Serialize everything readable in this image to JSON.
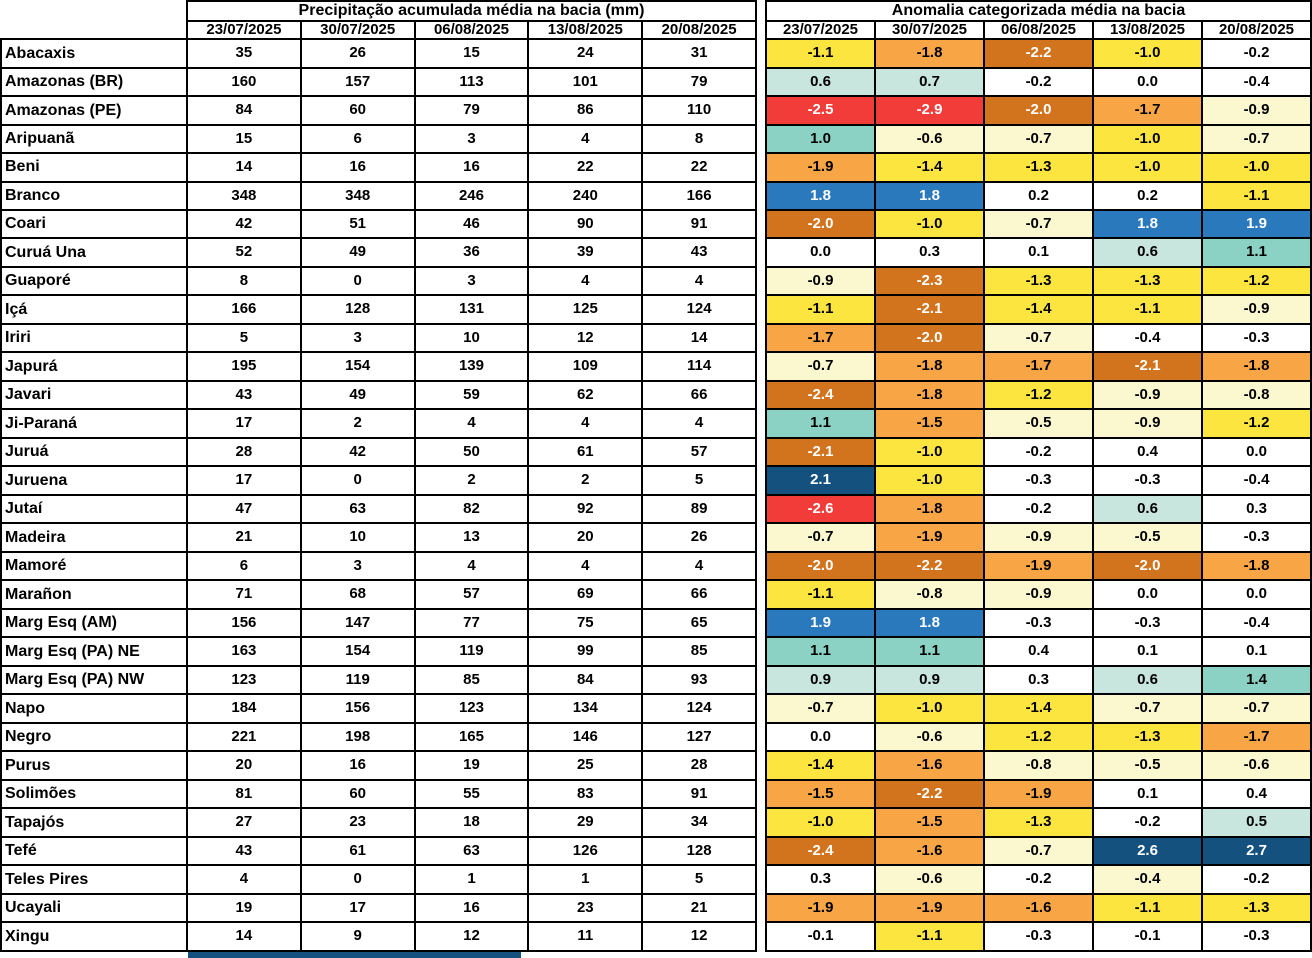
{
  "palette": {
    "white": "#FFFFFF",
    "cream": "#FBF8D0",
    "yellow": "#FCE53F",
    "orange": "#F8A645",
    "darkorange": "#D2741E",
    "red": "#F23C3A",
    "lightblue": "#C8E5DE",
    "teal": "#8BD2C5",
    "blue": "#2A79BC",
    "navy": "#14517F"
  },
  "dark_text_categories": [
    "darkorange",
    "red",
    "blue",
    "navy"
  ],
  "text_colors": {
    "dark_cell_text": "#FFFFFF",
    "light_cell_text": "#000000"
  },
  "bottom_bar": {
    "color": "#14517F"
  },
  "chart_data": {
    "type": "heatmap",
    "dates": [
      "23/07/2025",
      "30/07/2025",
      "06/08/2025",
      "13/08/2025",
      "20/08/2025"
    ],
    "basins": [
      "Abacaxis",
      "Amazonas (BR)",
      "Amazonas (PE)",
      "Aripuanã",
      "Beni",
      "Branco",
      "Coari",
      "Curuá Una",
      "Guaporé",
      "Içá",
      "Iriri",
      "Japurá",
      "Javari",
      "Ji-Paraná",
      "Juruá",
      "Juruena",
      "Jutaí",
      "Madeira",
      "Mamoré",
      "Marañon",
      "Marg Esq (AM)",
      "Marg Esq (PA) NE",
      "Marg Esq (PA) NW",
      "Napo",
      "Negro",
      "Purus",
      "Solimões",
      "Tapajós",
      "Tefé",
      "Teles Pires",
      "Ucayali",
      "Xingu"
    ],
    "left": {
      "title": "Precipitação acumulada média na bacia (mm)",
      "unit": "mm",
      "values": [
        [
          35,
          26,
          15,
          24,
          31
        ],
        [
          160,
          157,
          113,
          101,
          79
        ],
        [
          84,
          60,
          79,
          86,
          110
        ],
        [
          15,
          6,
          3,
          4,
          8
        ],
        [
          14,
          16,
          16,
          22,
          22
        ],
        [
          348,
          348,
          246,
          240,
          166
        ],
        [
          42,
          51,
          46,
          90,
          91
        ],
        [
          52,
          49,
          36,
          39,
          43
        ],
        [
          8,
          0,
          3,
          4,
          4
        ],
        [
          166,
          128,
          131,
          125,
          124
        ],
        [
          5,
          3,
          10,
          12,
          14
        ],
        [
          195,
          154,
          139,
          109,
          114
        ],
        [
          43,
          49,
          59,
          62,
          66
        ],
        [
          17,
          2,
          4,
          4,
          4
        ],
        [
          28,
          42,
          50,
          61,
          57
        ],
        [
          17,
          0,
          2,
          2,
          5
        ],
        [
          47,
          63,
          82,
          92,
          89
        ],
        [
          21,
          10,
          13,
          20,
          26
        ],
        [
          6,
          3,
          4,
          4,
          4
        ],
        [
          71,
          68,
          57,
          69,
          66
        ],
        [
          156,
          147,
          77,
          75,
          65
        ],
        [
          163,
          154,
          119,
          99,
          85
        ],
        [
          123,
          119,
          85,
          84,
          93
        ],
        [
          184,
          156,
          123,
          134,
          124
        ],
        [
          221,
          198,
          165,
          146,
          127
        ],
        [
          20,
          16,
          19,
          25,
          28
        ],
        [
          81,
          60,
          55,
          83,
          91
        ],
        [
          27,
          23,
          18,
          29,
          34
        ],
        [
          43,
          61,
          63,
          126,
          128
        ],
        [
          4,
          0,
          1,
          1,
          5
        ],
        [
          19,
          17,
          16,
          23,
          21
        ],
        [
          14,
          9,
          12,
          11,
          12
        ]
      ]
    },
    "right": {
      "title": "Anomalia categorizada média na bacia",
      "values": [
        [
          -1.1,
          -1.8,
          -2.2,
          -1.0,
          -0.2
        ],
        [
          0.6,
          0.7,
          -0.2,
          0.0,
          -0.4
        ],
        [
          -2.5,
          -2.9,
          -2.0,
          -1.7,
          -0.9
        ],
        [
          1.0,
          -0.6,
          -0.7,
          -1.0,
          -0.7
        ],
        [
          -1.9,
          -1.4,
          -1.3,
          -1.0,
          -1.0
        ],
        [
          1.8,
          1.8,
          0.2,
          0.2,
          -1.1
        ],
        [
          -2.0,
          -1.0,
          -0.7,
          1.8,
          1.9
        ],
        [
          0.0,
          0.3,
          0.1,
          0.6,
          1.1
        ],
        [
          -0.9,
          -2.3,
          -1.3,
          -1.3,
          -1.2
        ],
        [
          -1.1,
          -2.1,
          -1.4,
          -1.1,
          -0.9
        ],
        [
          -1.7,
          -2.0,
          -0.7,
          -0.4,
          -0.3
        ],
        [
          -0.7,
          -1.8,
          -1.7,
          -2.1,
          -1.8
        ],
        [
          -2.4,
          -1.8,
          -1.2,
          -0.9,
          -0.8
        ],
        [
          1.1,
          -1.5,
          -0.5,
          -0.9,
          -1.2
        ],
        [
          -2.1,
          -1.0,
          -0.2,
          0.4,
          0.0
        ],
        [
          2.1,
          -1.0,
          -0.3,
          -0.3,
          -0.4
        ],
        [
          -2.6,
          -1.8,
          -0.2,
          0.6,
          0.3
        ],
        [
          -0.7,
          -1.9,
          -0.9,
          -0.5,
          -0.3
        ],
        [
          -2.0,
          -2.2,
          -1.9,
          -2.0,
          -1.8
        ],
        [
          -1.1,
          -0.8,
          -0.9,
          0.0,
          0.0
        ],
        [
          1.9,
          1.8,
          -0.3,
          -0.3,
          -0.4
        ],
        [
          1.1,
          1.1,
          0.4,
          0.1,
          0.1
        ],
        [
          0.9,
          0.9,
          0.3,
          0.6,
          1.4
        ],
        [
          -0.7,
          -1.0,
          -1.4,
          -0.7,
          -0.7
        ],
        [
          0.0,
          -0.6,
          -1.2,
          -1.3,
          -1.7
        ],
        [
          -1.4,
          -1.6,
          -0.8,
          -0.5,
          -0.6
        ],
        [
          -1.5,
          -2.2,
          -1.9,
          0.1,
          0.4
        ],
        [
          -1.0,
          -1.5,
          -1.3,
          -0.2,
          0.5
        ],
        [
          -2.4,
          -1.6,
          -0.7,
          2.6,
          2.7
        ],
        [
          0.3,
          -0.6,
          -0.2,
          -0.4,
          -0.2
        ],
        [
          -1.9,
          -1.9,
          -1.6,
          -1.1,
          -1.3
        ],
        [
          -0.1,
          -1.1,
          -0.3,
          -0.1,
          -0.3
        ]
      ],
      "categories": [
        [
          "yellow",
          "orange",
          "darkorange",
          "yellow",
          "white"
        ],
        [
          "lightblue",
          "lightblue",
          "white",
          "white",
          "white"
        ],
        [
          "red",
          "red",
          "darkorange",
          "orange",
          "cream"
        ],
        [
          "teal",
          "cream",
          "cream",
          "yellow",
          "cream"
        ],
        [
          "orange",
          "yellow",
          "yellow",
          "yellow",
          "yellow"
        ],
        [
          "blue",
          "blue",
          "white",
          "white",
          "yellow"
        ],
        [
          "darkorange",
          "yellow",
          "cream",
          "blue",
          "blue"
        ],
        [
          "white",
          "white",
          "white",
          "lightblue",
          "teal"
        ],
        [
          "cream",
          "darkorange",
          "yellow",
          "yellow",
          "yellow"
        ],
        [
          "yellow",
          "darkorange",
          "yellow",
          "yellow",
          "cream"
        ],
        [
          "orange",
          "darkorange",
          "cream",
          "white",
          "white"
        ],
        [
          "cream",
          "orange",
          "orange",
          "darkorange",
          "orange"
        ],
        [
          "darkorange",
          "orange",
          "yellow",
          "cream",
          "cream"
        ],
        [
          "teal",
          "orange",
          "cream",
          "cream",
          "yellow"
        ],
        [
          "darkorange",
          "yellow",
          "white",
          "white",
          "white"
        ],
        [
          "navy",
          "yellow",
          "white",
          "white",
          "white"
        ],
        [
          "red",
          "orange",
          "white",
          "lightblue",
          "white"
        ],
        [
          "cream",
          "orange",
          "cream",
          "cream",
          "white"
        ],
        [
          "darkorange",
          "darkorange",
          "orange",
          "darkorange",
          "orange"
        ],
        [
          "yellow",
          "cream",
          "cream",
          "white",
          "white"
        ],
        [
          "blue",
          "blue",
          "white",
          "white",
          "white"
        ],
        [
          "teal",
          "teal",
          "white",
          "white",
          "white"
        ],
        [
          "lightblue",
          "lightblue",
          "white",
          "lightblue",
          "teal"
        ],
        [
          "cream",
          "yellow",
          "yellow",
          "cream",
          "cream"
        ],
        [
          "white",
          "cream",
          "yellow",
          "yellow",
          "orange"
        ],
        [
          "yellow",
          "orange",
          "cream",
          "cream",
          "cream"
        ],
        [
          "orange",
          "darkorange",
          "orange",
          "white",
          "white"
        ],
        [
          "yellow",
          "orange",
          "yellow",
          "white",
          "lightblue"
        ],
        [
          "darkorange",
          "orange",
          "cream",
          "navy",
          "navy"
        ],
        [
          "white",
          "cream",
          "white",
          "cream",
          "white"
        ],
        [
          "orange",
          "orange",
          "orange",
          "yellow",
          "yellow"
        ],
        [
          "white",
          "yellow",
          "white",
          "white",
          "white"
        ]
      ]
    }
  }
}
